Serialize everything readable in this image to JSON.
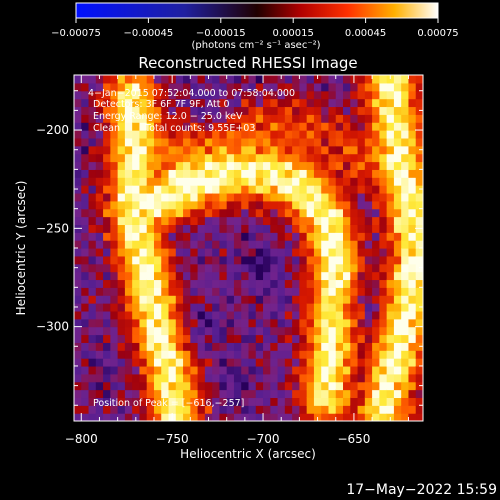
{
  "chart_data": {
    "type": "heatmap",
    "title": "Reconstructed RHESSI Image",
    "xlabel": "Heliocentric X (arcsec)",
    "ylabel": "Heliocentric Y (arcsec)",
    "xlim": [
      -804,
      -612
    ],
    "ylim": [
      -348,
      -172
    ],
    "x_ticks": [
      -800,
      -750,
      -700,
      -650
    ],
    "x_tick_labels": [
      "−800",
      "−750",
      "−700",
      "−650"
    ],
    "y_ticks": [
      -200,
      -250,
      -300
    ],
    "y_tick_labels": [
      "−200",
      "−250",
      "−300"
    ],
    "colorbar": {
      "range": [
        -0.00075,
        0.00075
      ],
      "ticks": [
        -0.00075,
        -0.00045,
        -0.00015,
        0.00015,
        0.00045,
        0.00075
      ],
      "tick_labels": [
        "−0.00075",
        "−0.00045",
        "−0.00015",
        "0.00015",
        "0.00045",
        "0.00075"
      ],
      "unit_label": "(photons cm⁻² s⁻¹ asec⁻²)",
      "colormap": [
        "#0000ff",
        "#000000",
        "#7f0000",
        "#ff2000",
        "#ff9000",
        "#ffff00",
        "#ffffff"
      ]
    },
    "annotations": {
      "time": "4−Jan−2015 07:52:04.000 to 07:58:04.000",
      "detectors": "Detectors: 3F 6F 7F 9F, Att 0",
      "energy": "Energy Range: 12.0 − 25.0 keV",
      "method": "Clean",
      "counts": "Total counts: 9.55E+03",
      "position": "Position of Peak = [−616,−257]"
    },
    "peak": {
      "x": -616,
      "y": -257
    },
    "features": {
      "background": "purple (~ -0.0002)",
      "ribbons": "bright loop arcs from top-left (-770,-200) to bottom-left (-755,-330), arching across the centre (-700,-230), and a right ribbon near x=-630"
    }
  },
  "footer": {
    "date": "17−May−2022 15:59"
  }
}
